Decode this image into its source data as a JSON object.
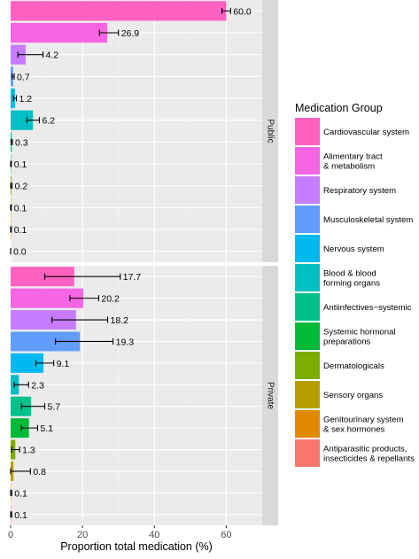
{
  "chart_data": {
    "type": "bar",
    "orientation": "horizontal",
    "xlabel": "Proportion total medication (%)",
    "xlim": [
      0,
      70
    ],
    "xticks": [
      "0",
      "20",
      "40",
      "60"
    ],
    "grid": true,
    "legend_position": "right",
    "legend": {
      "title": "Medication Group",
      "items": [
        {
          "label": "Cardiovascular system",
          "color": "#FF61C3"
        },
        {
          "label": "Alimentary tract\n& metabolism",
          "color": "#F564E3"
        },
        {
          "label": "Respiratory system",
          "color": "#C77CFF"
        },
        {
          "label": "Musculoskeletal system",
          "color": "#619CFF"
        },
        {
          "label": "Nervous system",
          "color": "#00B9F1"
        },
        {
          "label": "Blood & blood\nforming organs",
          "color": "#00BFC4"
        },
        {
          "label": "Antiinfectives−systemic",
          "color": "#00C08B"
        },
        {
          "label": "Systemic hormonal\npreparations",
          "color": "#00BA38"
        },
        {
          "label": "Dermatologicals",
          "color": "#7CAE00"
        },
        {
          "label": "Sensory organs",
          "color": "#B79F00"
        },
        {
          "label": "Genitourinary system\n& sex hormones",
          "color": "#E18A00"
        },
        {
          "label": "Antiparasitic products,\ninsecticides & repellants",
          "color": "#F8766D"
        }
      ]
    },
    "facets": [
      {
        "name": "Public",
        "values": [
          60.0,
          26.9,
          4.2,
          0.7,
          1.2,
          6.2,
          0.3,
          0.1,
          0.2,
          0.1,
          0.1,
          0.0
        ],
        "labels": [
          "60.0",
          "26.9",
          "4.2",
          "0.7",
          "1.2",
          "6.2",
          "0.3",
          "0.1",
          "0.2",
          "0.1",
          "0.1",
          "0.0"
        ],
        "errors": [
          [
            58.8,
            61.2
          ],
          [
            24.7,
            30.0
          ],
          [
            2.0,
            9.0
          ],
          [
            0.4,
            1.0
          ],
          [
            0.8,
            1.6
          ],
          [
            4.5,
            8.0
          ],
          [
            0.1,
            0.5
          ],
          [
            0.0,
            0.2
          ],
          [
            0.0,
            0.4
          ],
          [
            0.0,
            0.2
          ],
          [
            0.0,
            0.2
          ],
          [
            0.0,
            0.0
          ]
        ]
      },
      {
        "name": "Private",
        "values": [
          17.7,
          20.2,
          18.2,
          19.3,
          9.1,
          2.3,
          5.7,
          5.1,
          1.3,
          0.8,
          0.1,
          0.1
        ],
        "labels": [
          "17.7",
          "20.2",
          "18.2",
          "19.3",
          "9.1",
          "2.3",
          "5.7",
          "5.1",
          "1.3",
          "0.8",
          "0.1",
          "0.1"
        ],
        "errors": [
          [
            9.5,
            30.5
          ],
          [
            16.5,
            24.5
          ],
          [
            11.5,
            27.0
          ],
          [
            12.5,
            28.5
          ],
          [
            7.0,
            12.0
          ],
          [
            1.0,
            5.0
          ],
          [
            3.0,
            9.5
          ],
          [
            3.0,
            7.5
          ],
          [
            0.3,
            2.5
          ],
          [
            0.0,
            5.5
          ],
          [
            0.0,
            0.3
          ],
          [
            0.0,
            0.3
          ]
        ]
      }
    ]
  }
}
